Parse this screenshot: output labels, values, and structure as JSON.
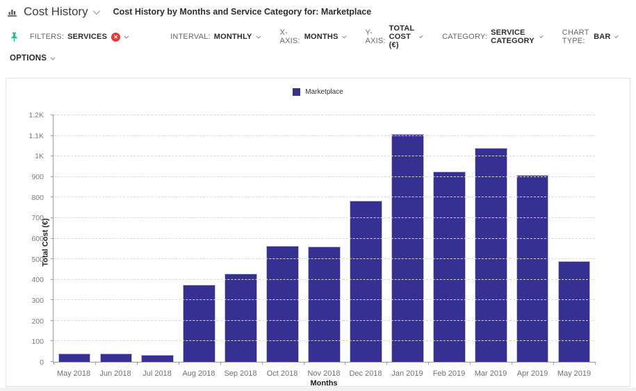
{
  "header": {
    "title": "Cost History",
    "subtitle": "Cost History by Months and Service Category for: Marketplace"
  },
  "toolbar": {
    "filters_label": "FILTERS:",
    "filters_value": "SERVICES",
    "interval_label": "INTERVAL:",
    "interval_value": "MONTHLY",
    "xaxis_label": "X-AXIS:",
    "xaxis_value": "MONTHS",
    "yaxis_label": "Y-AXIS:",
    "yaxis_value": "TOTAL COST (€)",
    "category_label": "CATEGORY:",
    "category_value": "SERVICE CATEGORY",
    "chart_type_label": "CHART TYPE:",
    "chart_type_value": "BAR",
    "options_label": "OPTIONS"
  },
  "icons": {
    "app": "bar-chart-icon",
    "filters_pin": "pin-icon",
    "filters_remove": "circle-x-icon",
    "dropdowns": "chevron-down-icon"
  },
  "colors": {
    "bar_fill": "#363092",
    "bar_border": "#c3bde2",
    "pin": "#1abc9c",
    "remove_badge": "#e53935"
  },
  "chart_data": {
    "type": "bar",
    "title": "Cost History by Months and Service Category for: Marketplace",
    "categories": [
      "May 2018",
      "Jun 2018",
      "Jul 2018",
      "Aug 2018",
      "Sep 2018",
      "Oct 2018",
      "Nov 2018",
      "Dec 2018",
      "Jan 2019",
      "Feb 2019",
      "Mar 2019",
      "Apr 2019",
      "May 2019"
    ],
    "series": [
      {
        "name": "Marketplace",
        "values": [
          40,
          40,
          35,
          375,
          430,
          565,
          560,
          785,
          1110,
          925,
          1040,
          910,
          490
        ]
      }
    ],
    "xlabel": "Months",
    "ylabel": "Total Cost (€)",
    "ylim": [
      0,
      1200
    ],
    "yticks": [
      {
        "value": 0,
        "label": "0"
      },
      {
        "value": 100,
        "label": "100"
      },
      {
        "value": 200,
        "label": "200"
      },
      {
        "value": 300,
        "label": "300"
      },
      {
        "value": 400,
        "label": "400"
      },
      {
        "value": 500,
        "label": "500"
      },
      {
        "value": 600,
        "label": "600"
      },
      {
        "value": 700,
        "label": "700"
      },
      {
        "value": 800,
        "label": "800"
      },
      {
        "value": 900,
        "label": "900"
      },
      {
        "value": 1000,
        "label": "1K"
      },
      {
        "value": 1100,
        "label": "1.1K"
      },
      {
        "value": 1200,
        "label": "1.2K"
      }
    ],
    "grid": "horizontal-dashed",
    "legend_position": "top-center"
  }
}
